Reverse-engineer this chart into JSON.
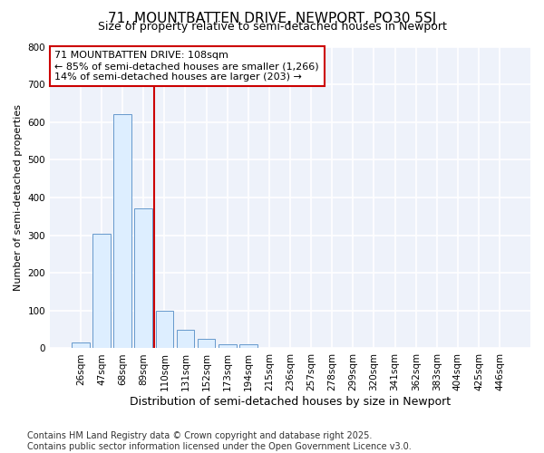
{
  "title": "71, MOUNTBATTEN DRIVE, NEWPORT, PO30 5SJ",
  "subtitle": "Size of property relative to semi-detached houses in Newport",
  "xlabel": "Distribution of semi-detached houses by size in Newport",
  "ylabel": "Number of semi-detached properties",
  "bar_color": "#ddeeff",
  "bar_edge_color": "#6699cc",
  "background_color": "#ffffff",
  "plot_bg_color": "#eef2fa",
  "grid_color": "#ffffff",
  "red_line_color": "#cc0000",
  "categories": [
    "26sqm",
    "47sqm",
    "68sqm",
    "89sqm",
    "110sqm",
    "131sqm",
    "152sqm",
    "173sqm",
    "194sqm",
    "215sqm",
    "236sqm",
    "257sqm",
    "278sqm",
    "299sqm",
    "320sqm",
    "341sqm",
    "362sqm",
    "383sqm",
    "404sqm",
    "425sqm",
    "446sqm"
  ],
  "values": [
    15,
    305,
    620,
    370,
    100,
    48,
    25,
    10,
    10,
    0,
    0,
    0,
    0,
    0,
    0,
    0,
    0,
    0,
    0,
    0,
    0
  ],
  "property_bin_index": 4,
  "annotation_title": "71 MOUNTBATTEN DRIVE: 108sqm",
  "annotation_line1": "← 85% of semi-detached houses are smaller (1,266)",
  "annotation_line2": "14% of semi-detached houses are larger (203) →",
  "ylim": [
    0,
    800
  ],
  "yticks": [
    0,
    100,
    200,
    300,
    400,
    500,
    600,
    700,
    800
  ],
  "footnote1": "Contains HM Land Registry data © Crown copyright and database right 2025.",
  "footnote2": "Contains public sector information licensed under the Open Government Licence v3.0.",
  "title_fontsize": 11,
  "subtitle_fontsize": 9,
  "ylabel_fontsize": 8,
  "xlabel_fontsize": 9,
  "tick_fontsize": 7.5,
  "footnote_fontsize": 7
}
